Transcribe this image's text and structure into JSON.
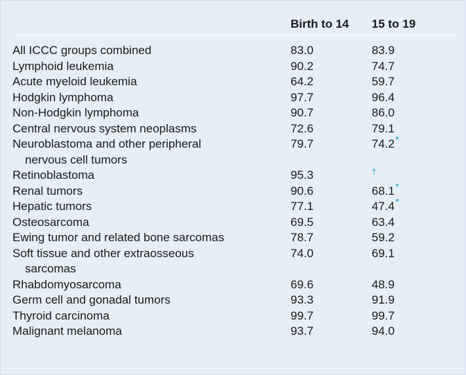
{
  "header": {
    "col_label": "",
    "col_a": "Birth to 14",
    "col_b": "15 to 19"
  },
  "rows": [
    {
      "label": "All ICCC groups combined",
      "label_cont": "",
      "a": "83.0",
      "b": "83.9",
      "mark": ""
    },
    {
      "label": "Lymphoid leukemia",
      "label_cont": "",
      "a": "90.2",
      "b": "74.7",
      "mark": ""
    },
    {
      "label": "Acute myeloid leukemia",
      "label_cont": "",
      "a": "64.2",
      "b": "59.7",
      "mark": ""
    },
    {
      "label": "Hodgkin lymphoma",
      "label_cont": "",
      "a": "97.7",
      "b": "96.4",
      "mark": ""
    },
    {
      "label": "Non-Hodgkin lymphoma",
      "label_cont": "",
      "a": "90.7",
      "b": "86.0",
      "mark": ""
    },
    {
      "label": "Central nervous system neoplasms",
      "label_cont": "",
      "a": "72.6",
      "b": "79.1",
      "mark": ""
    },
    {
      "label": "Neuroblastoma and other peripheral",
      "label_cont": "nervous cell tumors",
      "a": "79.7",
      "b": "74.2",
      "mark": "*"
    },
    {
      "label": "Retinoblastoma",
      "label_cont": "",
      "a": "95.3",
      "b": "",
      "mark": "†"
    },
    {
      "label": "Renal tumors",
      "label_cont": "",
      "a": "90.6",
      "b": "68.1",
      "mark": "*"
    },
    {
      "label": "Hepatic tumors",
      "label_cont": "",
      "a": "77.1",
      "b": "47.4",
      "mark": "*"
    },
    {
      "label": "Osteosarcoma",
      "label_cont": "",
      "a": "69.5",
      "b": "63.4",
      "mark": ""
    },
    {
      "label": "Ewing tumor and related bone sarcomas",
      "label_cont": "",
      "a": "78.7",
      "b": "59.2",
      "mark": ""
    },
    {
      "label": "Soft tissue and other extraosseous",
      "label_cont": "sarcomas",
      "a": "74.0",
      "b": "69.1",
      "mark": ""
    },
    {
      "label": "Rhabdomyosarcoma",
      "label_cont": "",
      "a": "69.6",
      "b": "48.9",
      "mark": ""
    },
    {
      "label": "Germ cell and gonadal tumors",
      "label_cont": "",
      "a": "93.3",
      "b": "91.9",
      "mark": ""
    },
    {
      "label": "Thyroid carcinoma",
      "label_cont": "",
      "a": "99.7",
      "b": "99.7",
      "mark": ""
    },
    {
      "label": "Malignant melanoma",
      "label_cont": "",
      "a": "93.7",
      "b": "94.0",
      "mark": ""
    }
  ],
  "colors": {
    "panel_bg": "#e6eef6",
    "text": "#1a1a1a",
    "mark": "#1aa3c7"
  }
}
